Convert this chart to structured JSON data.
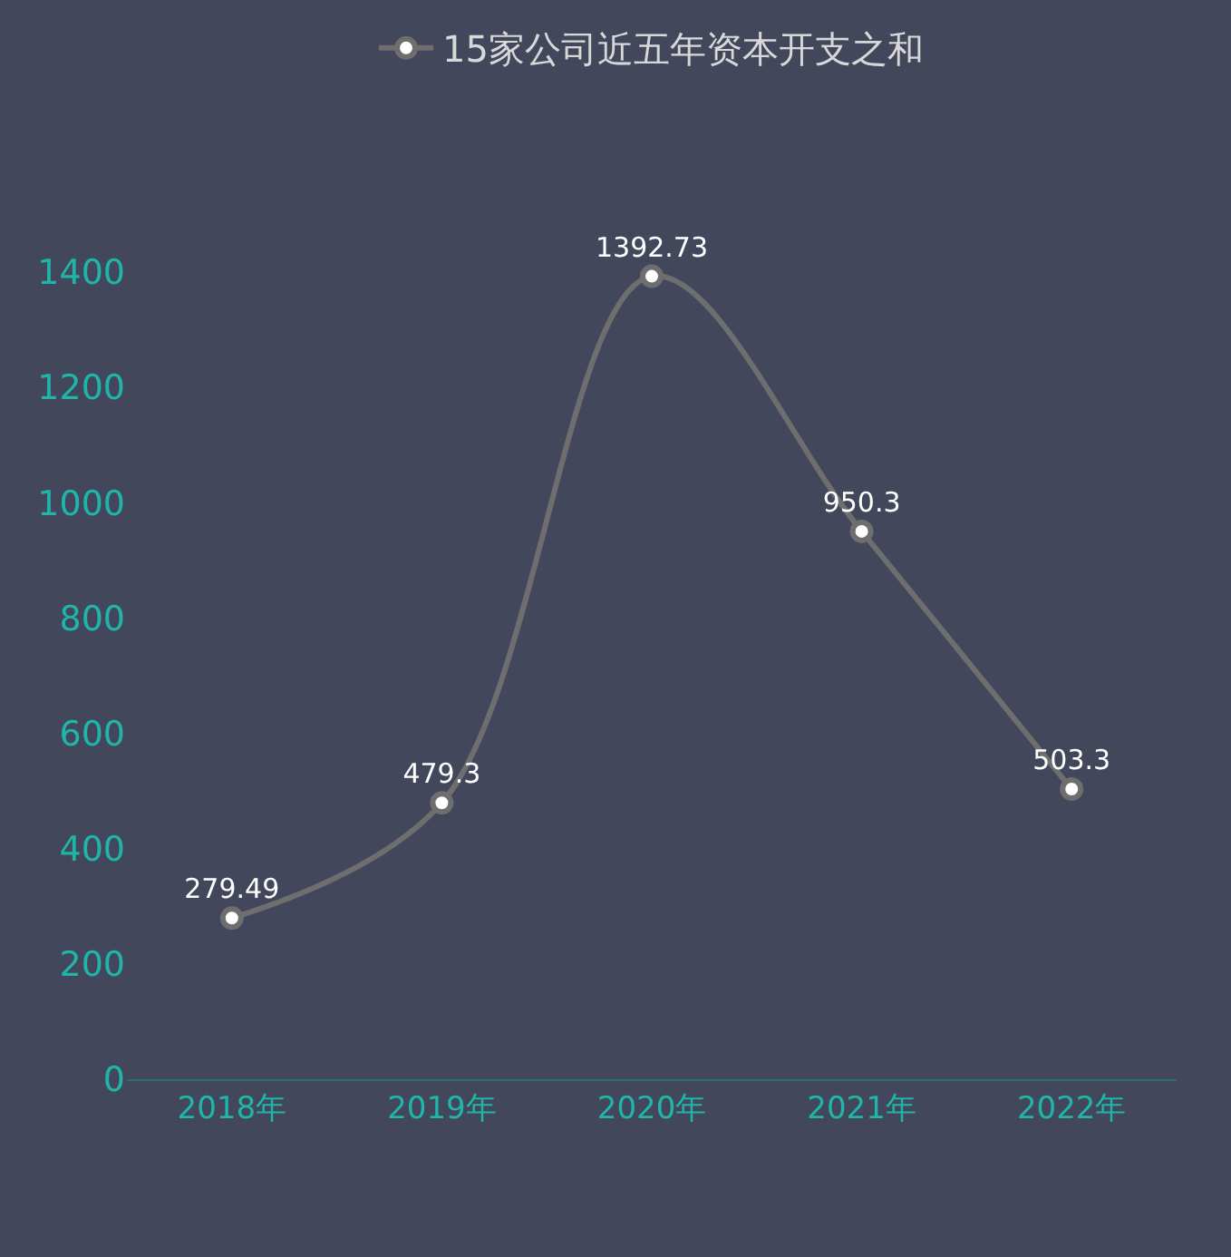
{
  "chart_data": {
    "type": "line",
    "categories": [
      "2018年",
      "2019年",
      "2020年",
      "2021年",
      "2022年"
    ],
    "series": [
      {
        "name": "15家公司近五年资本开支之和",
        "color": "#6e6e6e",
        "values": [
          279.49,
          479.3,
          1392.73,
          950.3,
          503.3
        ]
      }
    ],
    "data_labels": true,
    "legend": "top",
    "marker": "circle",
    "line_style": "solid",
    "grid": false,
    "ylim": [
      0,
      1400
    ],
    "yticks": [
      0,
      200,
      400,
      600,
      800,
      1000,
      1200,
      1400
    ]
  }
}
